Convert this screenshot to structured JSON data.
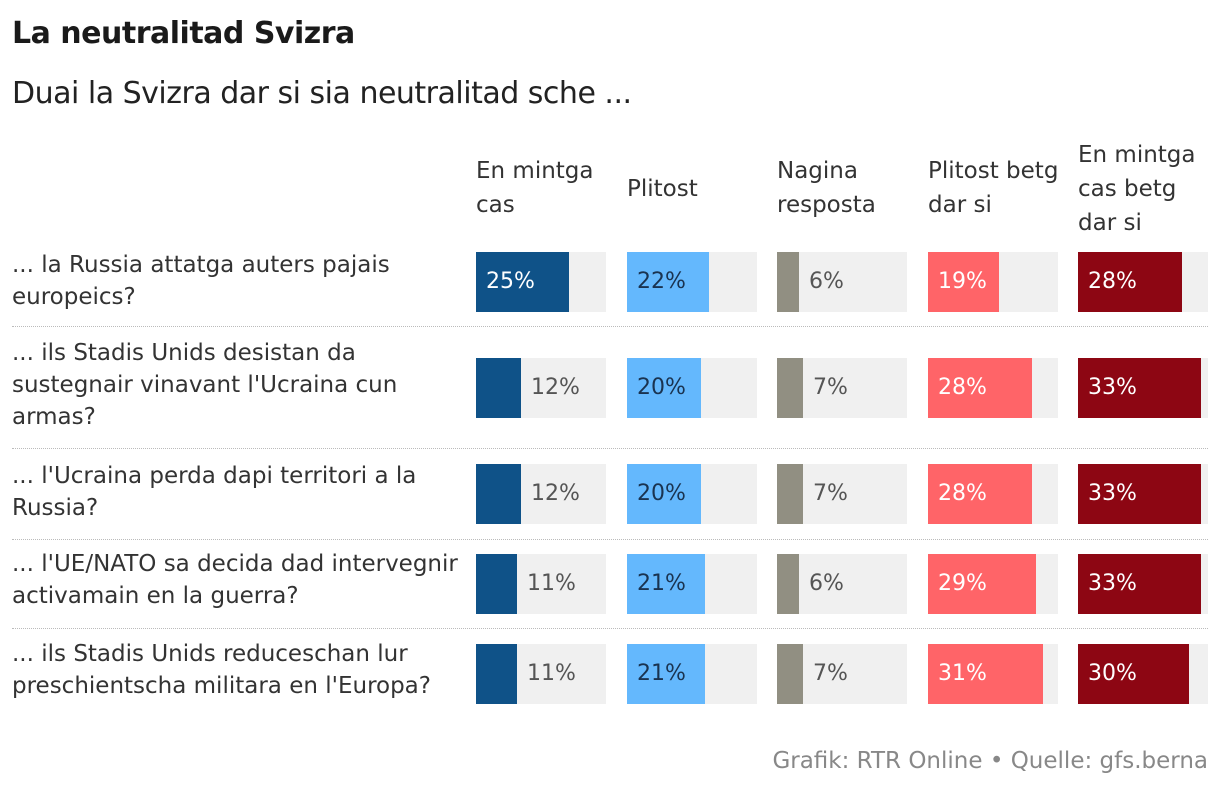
{
  "chart_data": {
    "type": "bar",
    "title": "La neutralitad Svizra",
    "subtitle": "Duai la Svizra dar si sia neutralitad sche ...",
    "categories": [
      "... la Russia attatga auters pajais europeics?",
      "... ils Stadis Unids desistan da sustegnair vinavant l'Ucraina cun armas?",
      "... l'Ucraina perda dapi territori a la Russia?",
      "... l'UE/NATO sa decida dad intervegnir activamain en la guerra?",
      "... ils Stadis Unids reduceschan lur preschientscha militara en l'Europa?"
    ],
    "series": [
      {
        "name": "En mintga cas",
        "color": "#0f5288",
        "label_inside_color": "#ffffff",
        "values": [
          25,
          12,
          12,
          11,
          11
        ]
      },
      {
        "name": "Plitost",
        "color": "#64b8fd",
        "label_inside_color": "#1a3350",
        "values": [
          22,
          20,
          20,
          21,
          21
        ]
      },
      {
        "name": "Nagina resposta",
        "color": "#918f82",
        "label_inside_color": "#ffffff",
        "values": [
          6,
          7,
          7,
          6,
          7
        ]
      },
      {
        "name": "Plitost betg dar si",
        "color": "#ff6468",
        "label_inside_color": "#ffffff",
        "values": [
          19,
          28,
          28,
          29,
          31
        ]
      },
      {
        "name": "En mintga cas betg dar si",
        "color": "#8d0613",
        "label_inside_color": "#ffffff",
        "values": [
          28,
          33,
          33,
          33,
          30
        ]
      }
    ],
    "unit": "%",
    "xlim": [
      0,
      35
    ]
  },
  "footer": "Grafik: RTR Online • Quelle: gfs.berna"
}
